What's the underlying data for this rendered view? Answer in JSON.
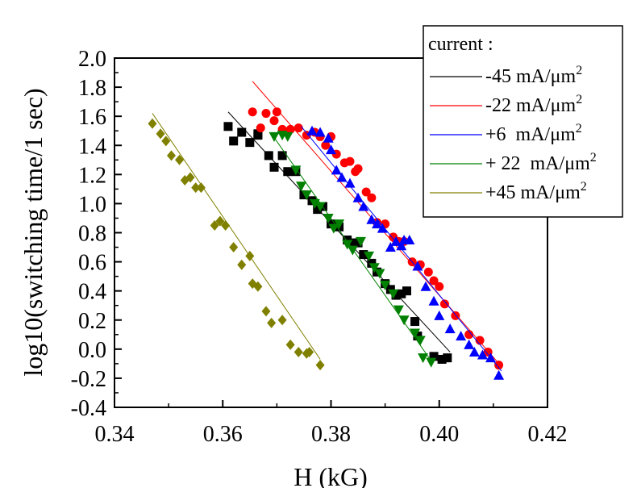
{
  "chart_data": {
    "type": "scatter",
    "xlabel": "H (kG)",
    "ylabel": "log10(switching time/1 sec)",
    "xlim": [
      0.34,
      0.42
    ],
    "ylim": [
      -0.4,
      2.0
    ],
    "xticks": [
      "0.34",
      "0.36",
      "0.38",
      "0.40",
      "0.42"
    ],
    "yticks": [
      "-0.4",
      "-0.2",
      "0.0",
      "0.2",
      "0.4",
      "0.6",
      "0.8",
      "1.0",
      "1.2",
      "1.4",
      "1.6",
      "1.8",
      "2.0"
    ],
    "legend": {
      "title": "current :",
      "placement": "top-right"
    },
    "series": [
      {
        "name": "-45 mA/μm",
        "superscript": "2",
        "color": "#000000",
        "marker": "square",
        "fit": [
          [
            0.361,
            1.63
          ],
          [
            0.402,
            -0.02
          ]
        ],
        "points": [
          [
            0.361,
            1.53
          ],
          [
            0.362,
            1.43
          ],
          [
            0.3635,
            1.49
          ],
          [
            0.365,
            1.42
          ],
          [
            0.3665,
            1.47
          ],
          [
            0.3665,
            1.48
          ],
          [
            0.3685,
            1.33
          ],
          [
            0.3695,
            1.25
          ],
          [
            0.371,
            1.33
          ],
          [
            0.372,
            1.22
          ],
          [
            0.3735,
            1.22
          ],
          [
            0.375,
            1.06
          ],
          [
            0.3765,
            1.02
          ],
          [
            0.3775,
            0.96
          ],
          [
            0.3785,
            0.98
          ],
          [
            0.38,
            0.86
          ],
          [
            0.3815,
            0.84
          ],
          [
            0.383,
            0.75
          ],
          [
            0.384,
            0.73
          ],
          [
            0.385,
            0.73
          ],
          [
            0.386,
            0.65
          ],
          [
            0.3875,
            0.59
          ],
          [
            0.3885,
            0.53
          ],
          [
            0.39,
            0.45
          ],
          [
            0.391,
            0.41
          ],
          [
            0.392,
            0.37
          ],
          [
            0.393,
            0.38
          ],
          [
            0.394,
            0.4
          ],
          [
            0.3955,
            0.19
          ],
          [
            0.396,
            0.09
          ],
          [
            0.399,
            -0.05
          ],
          [
            0.4005,
            -0.07
          ],
          [
            0.4015,
            -0.06
          ]
        ]
      },
      {
        "name": "-22 mA/μm",
        "superscript": "2",
        "color": "#ff0000",
        "marker": "circle",
        "fit": [
          [
            0.3655,
            1.84
          ],
          [
            0.4115,
            -0.12
          ]
        ],
        "points": [
          [
            0.3655,
            1.63
          ],
          [
            0.367,
            1.52
          ],
          [
            0.368,
            1.62
          ],
          [
            0.3695,
            1.57
          ],
          [
            0.37,
            1.63
          ],
          [
            0.371,
            1.51
          ],
          [
            0.3725,
            1.51
          ],
          [
            0.374,
            1.52
          ],
          [
            0.3755,
            1.47
          ],
          [
            0.377,
            1.49
          ],
          [
            0.378,
            1.46
          ],
          [
            0.379,
            1.4
          ],
          [
            0.38,
            1.46
          ],
          [
            0.381,
            1.34
          ],
          [
            0.3825,
            1.28
          ],
          [
            0.3835,
            1.29
          ],
          [
            0.3845,
            1.22
          ],
          [
            0.385,
            1.24
          ],
          [
            0.3865,
            1.08
          ],
          [
            0.3875,
            1.04
          ],
          [
            0.3885,
            0.87
          ],
          [
            0.39,
            0.86
          ],
          [
            0.3915,
            0.77
          ],
          [
            0.3925,
            0.74
          ],
          [
            0.3935,
            0.74
          ],
          [
            0.395,
            0.6
          ],
          [
            0.3965,
            0.58
          ],
          [
            0.398,
            0.53
          ],
          [
            0.399,
            0.47
          ],
          [
            0.4,
            0.43
          ],
          [
            0.401,
            0.31
          ],
          [
            0.403,
            0.23
          ],
          [
            0.4055,
            0.1
          ],
          [
            0.4075,
            0.06
          ],
          [
            0.409,
            -0.02
          ],
          [
            0.411,
            -0.11
          ]
        ]
      },
      {
        "name": "+6  mA/μm",
        "superscript": "2",
        "color": "#0000ff",
        "marker": "triangle-up",
        "fit": [
          [
            0.3745,
            1.53
          ],
          [
            0.4115,
            -0.15
          ]
        ],
        "points": [
          [
            0.3765,
            1.5
          ],
          [
            0.378,
            1.49
          ],
          [
            0.3795,
            1.45
          ],
          [
            0.38,
            1.37
          ],
          [
            0.381,
            1.23
          ],
          [
            0.382,
            1.18
          ],
          [
            0.3835,
            1.14
          ],
          [
            0.385,
            1.04
          ],
          [
            0.386,
            0.98
          ],
          [
            0.3875,
            0.89
          ],
          [
            0.3885,
            0.86
          ],
          [
            0.3895,
            0.83
          ],
          [
            0.391,
            0.7
          ],
          [
            0.392,
            0.74
          ],
          [
            0.393,
            0.71
          ],
          [
            0.3935,
            0.75
          ],
          [
            0.3945,
            0.75
          ],
          [
            0.396,
            0.57
          ],
          [
            0.3975,
            0.43
          ],
          [
            0.399,
            0.33
          ],
          [
            0.4,
            0.23
          ],
          [
            0.402,
            0.14
          ],
          [
            0.404,
            0.09
          ],
          [
            0.4055,
            0.03
          ],
          [
            0.4065,
            -0.02
          ],
          [
            0.408,
            -0.04
          ],
          [
            0.4095,
            -0.06
          ],
          [
            0.411,
            -0.18
          ]
        ]
      },
      {
        "name": "+ 22  mA/μm",
        "superscript": "2",
        "color": "#008000",
        "marker": "triangle-down",
        "fit": [
          [
            0.369,
            1.48
          ],
          [
            0.3985,
            -0.08
          ]
        ],
        "points": [
          [
            0.3695,
            1.46
          ],
          [
            0.371,
            1.47
          ],
          [
            0.372,
            1.46
          ],
          [
            0.3735,
            1.23
          ],
          [
            0.3745,
            1.12
          ],
          [
            0.3755,
            1.06
          ],
          [
            0.377,
            1.0
          ],
          [
            0.378,
            0.98
          ],
          [
            0.3795,
            0.9
          ],
          [
            0.3805,
            0.83
          ],
          [
            0.3815,
            0.86
          ],
          [
            0.383,
            0.72
          ],
          [
            0.384,
            0.68
          ],
          [
            0.3855,
            0.74
          ],
          [
            0.387,
            0.64
          ],
          [
            0.388,
            0.56
          ],
          [
            0.389,
            0.52
          ],
          [
            0.39,
            0.44
          ],
          [
            0.3915,
            0.38
          ],
          [
            0.3925,
            0.27
          ],
          [
            0.3935,
            0.2
          ],
          [
            0.3955,
            0.11
          ],
          [
            0.3965,
            0.06
          ],
          [
            0.397,
            -0.06
          ],
          [
            0.3985,
            -0.09
          ]
        ]
      },
      {
        "name": "+45 mA/μm",
        "superscript": "2",
        "color": "#808000",
        "marker": "diamond",
        "fit": [
          [
            0.347,
            1.62
          ],
          [
            0.378,
            -0.07
          ]
        ],
        "points": [
          [
            0.347,
            1.55
          ],
          [
            0.3485,
            1.48
          ],
          [
            0.3495,
            1.43
          ],
          [
            0.3505,
            1.33
          ],
          [
            0.352,
            1.3
          ],
          [
            0.353,
            1.16
          ],
          [
            0.354,
            1.18
          ],
          [
            0.355,
            1.11
          ],
          [
            0.356,
            1.11
          ],
          [
            0.3585,
            0.85
          ],
          [
            0.3595,
            0.88
          ],
          [
            0.3605,
            0.85
          ],
          [
            0.362,
            0.7
          ],
          [
            0.3635,
            0.58
          ],
          [
            0.365,
            0.64
          ],
          [
            0.3655,
            0.45
          ],
          [
            0.3665,
            0.43
          ],
          [
            0.368,
            0.26
          ],
          [
            0.369,
            0.18
          ],
          [
            0.371,
            0.2
          ],
          [
            0.3725,
            0.03
          ],
          [
            0.374,
            -0.02
          ],
          [
            0.3755,
            -0.03
          ],
          [
            0.376,
            -0.02
          ],
          [
            0.378,
            -0.11
          ]
        ]
      }
    ]
  }
}
